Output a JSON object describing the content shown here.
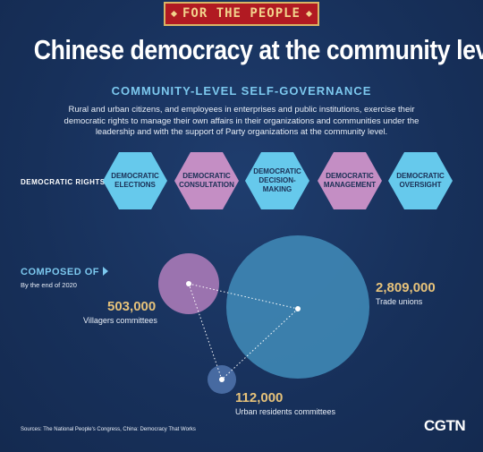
{
  "banner": "FOR THE PEOPLE",
  "headline": "Chinese democracy at the community level",
  "subtitle": "COMMUNITY-LEVEL SELF-GOVERNANCE",
  "intro": "Rural and urban citizens, and employees in enterprises and public institutions, exercise their democratic rights to manage their own affairs in their organizations and communities under the leadership and with the support of Party organizations at the community level.",
  "rights_label": "DEMOCRATIC RIGHTS",
  "rights": [
    {
      "label": "DEMOCRATIC ELECTIONS",
      "color": "#66c9ec"
    },
    {
      "label": "DEMOCRATIC CONSULTATION",
      "color": "#c48ec4"
    },
    {
      "label": "DEMOCRATIC DECISION-MAKING",
      "color": "#66c9ec"
    },
    {
      "label": "DEMOCRATIC MANAGEMENT",
      "color": "#c48ec4"
    },
    {
      "label": "DEMOCRATIC OVERSIGHT",
      "color": "#66c9ec"
    }
  ],
  "composed_label": "COMPOSED OF",
  "as_of": "By the end of 2020",
  "bubbles": [
    {
      "value": 503000,
      "value_label": "503,000",
      "caption": "Villagers committees",
      "color": "#a678b5"
    },
    {
      "value": 2809000,
      "value_label": "2,809,000",
      "caption": "Trade unions",
      "color": "#3e86b3"
    },
    {
      "value": 112000,
      "value_label": "112,000",
      "caption": "Urban residents committees",
      "color": "#4a6ea4"
    }
  ],
  "sources": "Sources: The National People's Congress, China: Democracy That Works",
  "logo": "CGTN"
}
